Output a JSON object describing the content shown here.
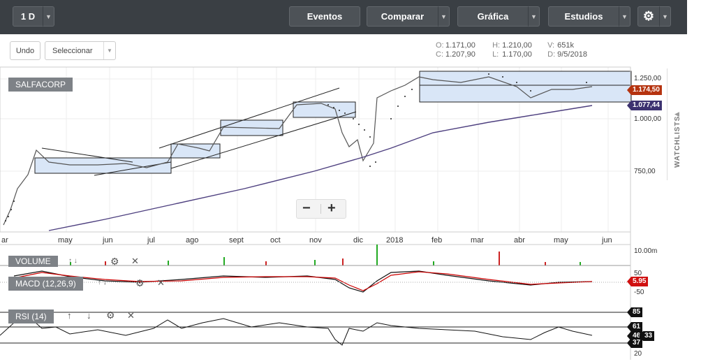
{
  "toolbar": {
    "period": "1 D",
    "events": "Eventos",
    "compare": "Comparar",
    "chart": "Gráfica",
    "studies": "Estudios",
    "settings_icon": "gear-icon"
  },
  "subbar": {
    "undo": "Undo",
    "select": "Seleccionar"
  },
  "ohlc": {
    "o_label": "O:",
    "o": "1.171,00",
    "h_label": "H:",
    "h": "1.210,00",
    "v_label": "V:",
    "v": "651k",
    "c_label": "C:",
    "c": "1.207,90",
    "l_label": "L:",
    "l": "1.170,00",
    "d_label": "D:",
    "d": "9/5/2018"
  },
  "main": {
    "symbol": "SALFACORP",
    "price_ticks": [
      "1.250,00",
      "1.000,00",
      "750,00"
    ],
    "price_tag": "1.174,50",
    "ma_tag": "1.077,44",
    "months": [
      "ar",
      "may",
      "jun",
      "jul",
      "ago",
      "sept",
      "oct",
      "nov",
      "dic",
      "2018",
      "feb",
      "mar",
      "abr",
      "may",
      "jun"
    ]
  },
  "volume": {
    "label": "VOLUME",
    "tick": "10.00m"
  },
  "macd": {
    "label": "MACD (12,26,9)",
    "ticks": [
      "50",
      "-50"
    ],
    "tag": "5.95"
  },
  "rsi": {
    "label": "RSI (14)",
    "levels": [
      "85",
      "61",
      "37",
      "20"
    ],
    "tags": [
      "85",
      "61",
      "46",
      "33",
      "37"
    ]
  },
  "watchlists": "WATCHLISTS",
  "zoom": {
    "minus": "−",
    "plus": "+"
  },
  "colors": {
    "topbar": "#3a3f44",
    "price_tag": "#b5330f",
    "ma_tag": "#3c3270",
    "ma_line": "#4d3f7f",
    "box_fill": "#d9e6f7"
  }
}
